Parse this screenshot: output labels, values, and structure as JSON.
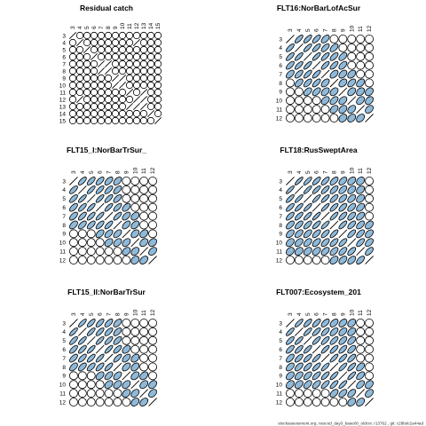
{
  "footer": "stockassessment.org, nescod_day3_base00_oldcor, r13762 , git: c28bdc2a44ad",
  "colors": {
    "ellipse_fill": "#8fb9d9",
    "stroke": "#000000",
    "background": "#ffffff"
  },
  "chart_data": [
    {
      "type": "heatmap",
      "title": "Residual catch",
      "labels": [
        "3",
        "4",
        "5",
        "6",
        "7",
        "8",
        "9",
        "10",
        "11",
        "12",
        "13",
        "14",
        "15"
      ],
      "grid": false,
      "lines": [
        [
          1,
          9
        ],
        [
          4,
          5
        ],
        [
          6,
          7
        ],
        [
          8,
          10
        ],
        [
          9,
          10
        ]
      ]
    },
    {
      "type": "heatmap",
      "title": "FLT16:NorBarLofAcSur",
      "labels": [
        "3",
        "4",
        "5",
        "6",
        "7",
        "8",
        "9",
        "10",
        "11",
        "12"
      ],
      "grid": false,
      "lines": [],
      "cells": [
        [
          0,
          1,
          0.75
        ],
        [
          0,
          2,
          0.75
        ],
        [
          0,
          3,
          0.7
        ],
        [
          0,
          4,
          0.55
        ],
        [
          1,
          2,
          0.8
        ],
        [
          1,
          3,
          0.75
        ],
        [
          1,
          4,
          0.65
        ],
        [
          1,
          5,
          0.55
        ],
        [
          2,
          3,
          0.8
        ],
        [
          2,
          4,
          0.75
        ],
        [
          2,
          5,
          0.65
        ],
        [
          2,
          6,
          0.5
        ],
        [
          3,
          4,
          0.75
        ],
        [
          3,
          5,
          0.7
        ],
        [
          3,
          6,
          0.55
        ],
        [
          4,
          5,
          0.5
        ],
        [
          4,
          6,
          0.45
        ],
        [
          4,
          7,
          0.4
        ],
        [
          5,
          6,
          0.4
        ],
        [
          5,
          7,
          0.5
        ],
        [
          5,
          8,
          0.4
        ],
        [
          6,
          7,
          0.4
        ],
        [
          6,
          8,
          0.35
        ],
        [
          6,
          9,
          0.3
        ],
        [
          7,
          8,
          0.4
        ],
        [
          7,
          9,
          0.35
        ],
        [
          8,
          9,
          0.4
        ]
      ]
    },
    {
      "type": "heatmap",
      "title": "FLT15_I:NorBarTrSur_",
      "labels": [
        "3",
        "4",
        "5",
        "6",
        "7",
        "8",
        "9",
        "10",
        "11",
        "12"
      ],
      "grid": false,
      "lines": [],
      "cells": [
        [
          0,
          1,
          0.7
        ],
        [
          0,
          2,
          0.7
        ],
        [
          0,
          3,
          0.65
        ],
        [
          0,
          4,
          0.6
        ],
        [
          0,
          5,
          0.5
        ],
        [
          1,
          2,
          0.8
        ],
        [
          1,
          3,
          0.75
        ],
        [
          1,
          4,
          0.7
        ],
        [
          1,
          5,
          0.6
        ],
        [
          2,
          3,
          0.8
        ],
        [
          2,
          4,
          0.75
        ],
        [
          2,
          5,
          0.65
        ],
        [
          3,
          4,
          0.8
        ],
        [
          3,
          5,
          0.7
        ],
        [
          3,
          6,
          0.5
        ],
        [
          4,
          5,
          0.75
        ],
        [
          4,
          6,
          0.55
        ],
        [
          4,
          7,
          0.4
        ],
        [
          5,
          6,
          0.55
        ],
        [
          5,
          7,
          0.45
        ],
        [
          6,
          7,
          0.4
        ],
        [
          6,
          8,
          0.35
        ],
        [
          7,
          8,
          0.35
        ],
        [
          7,
          9,
          0.3
        ],
        [
          8,
          9,
          0.4
        ]
      ]
    },
    {
      "type": "heatmap",
      "title": "FLT18:RusSweptArea",
      "labels": [
        "3",
        "4",
        "5",
        "6",
        "7",
        "8",
        "9",
        "10",
        "11",
        "12"
      ],
      "grid": false,
      "lines": [],
      "cells": [
        [
          0,
          1,
          0.85
        ],
        [
          0,
          2,
          0.8
        ],
        [
          0,
          3,
          0.75
        ],
        [
          0,
          4,
          0.7
        ],
        [
          0,
          5,
          0.6
        ],
        [
          0,
          6,
          0.5
        ],
        [
          0,
          7,
          0.4
        ],
        [
          0,
          8,
          0.3
        ],
        [
          1,
          2,
          0.85
        ],
        [
          1,
          3,
          0.8
        ],
        [
          1,
          4,
          0.75
        ],
        [
          1,
          5,
          0.65
        ],
        [
          1,
          6,
          0.55
        ],
        [
          1,
          7,
          0.45
        ],
        [
          1,
          8,
          0.35
        ],
        [
          2,
          3,
          0.85
        ],
        [
          2,
          4,
          0.8
        ],
        [
          2,
          5,
          0.7
        ],
        [
          2,
          6,
          0.6
        ],
        [
          2,
          7,
          0.5
        ],
        [
          2,
          8,
          0.4
        ],
        [
          3,
          4,
          0.85
        ],
        [
          3,
          5,
          0.75
        ],
        [
          3,
          6,
          0.65
        ],
        [
          3,
          7,
          0.55
        ],
        [
          3,
          8,
          0.45
        ],
        [
          4,
          5,
          0.8
        ],
        [
          4,
          6,
          0.7
        ],
        [
          4,
          7,
          0.6
        ],
        [
          4,
          8,
          0.5
        ],
        [
          5,
          6,
          0.75
        ],
        [
          5,
          7,
          0.65
        ],
        [
          5,
          8,
          0.55
        ],
        [
          5,
          9,
          0.4
        ],
        [
          6,
          7,
          0.7
        ],
        [
          6,
          8,
          0.6
        ],
        [
          6,
          9,
          0.45
        ],
        [
          7,
          8,
          0.65
        ],
        [
          7,
          9,
          0.5
        ],
        [
          8,
          9,
          0.6
        ]
      ]
    },
    {
      "type": "heatmap",
      "title": "FLT15_II:NorBarTrSur",
      "labels": [
        "3",
        "4",
        "5",
        "6",
        "7",
        "8",
        "9",
        "10",
        "11",
        "12"
      ],
      "grid": false,
      "lines": [],
      "cells": [
        [
          0,
          1,
          0.8
        ],
        [
          0,
          2,
          0.75
        ],
        [
          0,
          3,
          0.7
        ],
        [
          0,
          4,
          0.65
        ],
        [
          0,
          5,
          0.55
        ],
        [
          1,
          2,
          0.8
        ],
        [
          1,
          3,
          0.75
        ],
        [
          1,
          4,
          0.7
        ],
        [
          1,
          5,
          0.6
        ],
        [
          2,
          3,
          0.8
        ],
        [
          2,
          4,
          0.75
        ],
        [
          2,
          5,
          0.65
        ],
        [
          3,
          4,
          0.8
        ],
        [
          3,
          5,
          0.7
        ],
        [
          3,
          6,
          0.45
        ],
        [
          4,
          5,
          0.75
        ],
        [
          4,
          6,
          0.55
        ],
        [
          4,
          7,
          0.4
        ],
        [
          5,
          6,
          0.5
        ],
        [
          5,
          7,
          0.4
        ],
        [
          6,
          7,
          0.4
        ],
        [
          6,
          8,
          0.35
        ],
        [
          7,
          8,
          0.4
        ],
        [
          7,
          9,
          0.35
        ],
        [
          8,
          9,
          0.4
        ]
      ]
    },
    {
      "type": "heatmap",
      "title": "FLT007:Ecosystem_201",
      "labels": [
        "3",
        "4",
        "5",
        "6",
        "7",
        "8",
        "9",
        "10",
        "11",
        "12"
      ],
      "grid": false,
      "lines": [],
      "cells": [
        [
          0,
          1,
          0.8
        ],
        [
          0,
          2,
          0.75
        ],
        [
          0,
          3,
          0.7
        ],
        [
          0,
          4,
          0.6
        ],
        [
          0,
          5,
          0.5
        ],
        [
          0,
          6,
          0.45
        ],
        [
          0,
          7,
          0.35
        ],
        [
          1,
          2,
          0.8
        ],
        [
          1,
          3,
          0.75
        ],
        [
          1,
          4,
          0.7
        ],
        [
          1,
          5,
          0.6
        ],
        [
          1,
          6,
          0.5
        ],
        [
          1,
          7,
          0.4
        ],
        [
          2,
          3,
          0.8
        ],
        [
          2,
          4,
          0.75
        ],
        [
          2,
          5,
          0.7
        ],
        [
          2,
          6,
          0.6
        ],
        [
          2,
          7,
          0.5
        ],
        [
          3,
          4,
          0.8
        ],
        [
          3,
          5,
          0.75
        ],
        [
          3,
          6,
          0.7
        ],
        [
          3,
          7,
          0.6
        ],
        [
          4,
          5,
          0.8
        ],
        [
          4,
          6,
          0.75
        ],
        [
          4,
          7,
          0.7
        ],
        [
          5,
          6,
          0.8
        ],
        [
          5,
          7,
          0.75
        ],
        [
          5,
          8,
          0.5
        ],
        [
          6,
          7,
          0.8
        ],
        [
          6,
          8,
          0.55
        ],
        [
          7,
          8,
          0.5
        ],
        [
          7,
          9,
          0.35
        ],
        [
          8,
          9,
          0.4
        ]
      ]
    }
  ]
}
